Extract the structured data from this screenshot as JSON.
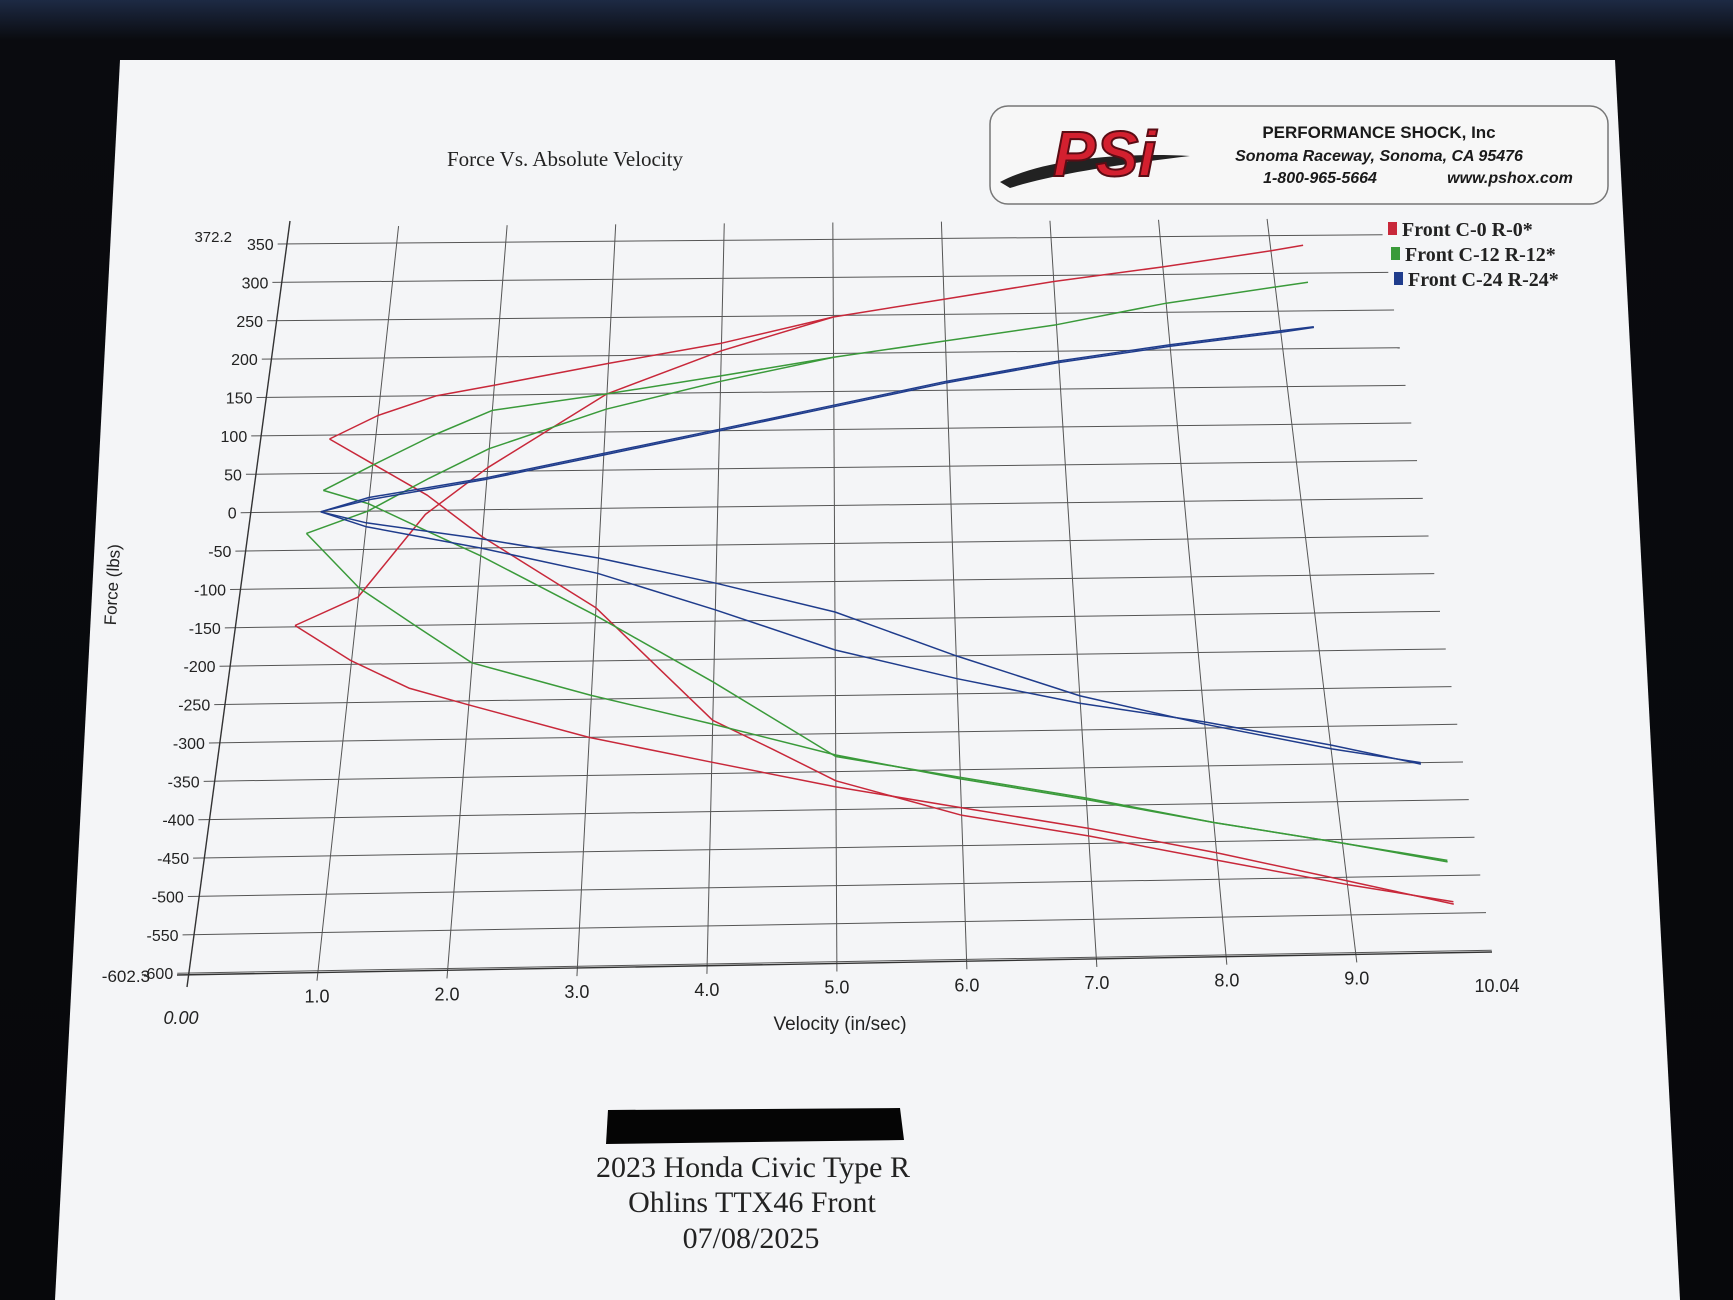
{
  "header": {
    "chart_title": "Force Vs. Absolute Velocity",
    "company_name": "PERFORMANCE SHOCK, Inc",
    "company_location": "Sonoma Raceway, Sonoma, CA 95476",
    "company_phone": "1-800-965-5664",
    "company_web": "www.pshox.com",
    "logo_text": "PSi"
  },
  "footer": {
    "vehicle": "2023 Honda Civic Type R",
    "shock": "Ohlins TTX46 Front",
    "date": "07/08/2025"
  },
  "colors": {
    "red": "#c8283a",
    "green": "#3a9a3a",
    "blue": "#1f3c8c",
    "grid": "#555555",
    "logo_red": "#d3202f"
  },
  "chart_data": {
    "type": "line",
    "title": "Force Vs. Absolute Velocity",
    "xlabel": "Velocity (in/sec)",
    "ylabel": "Force (lbs)",
    "xlim": [
      0.0,
      10.04
    ],
    "ylim": [
      -602.3,
      372.2
    ],
    "x_ticks": [
      1.0,
      2.0,
      3.0,
      4.0,
      5.0,
      6.0,
      7.0,
      8.0,
      9.0
    ],
    "x_tick_labels": [
      "1.0",
      "2.0",
      "3.0",
      "4.0",
      "5.0",
      "6.0",
      "7.0",
      "8.0",
      "9.0"
    ],
    "x_min_label": "0.00",
    "x_max_label": "10.04",
    "y_ticks": [
      350,
      300,
      250,
      200,
      150,
      100,
      50,
      0,
      -50,
      -100,
      -150,
      -200,
      -250,
      -300,
      -350,
      -400,
      -450,
      -500,
      -550,
      -600
    ],
    "y_tick_labels": [
      "350",
      "300",
      "250",
      "200",
      "150",
      "100",
      "50",
      "0",
      "-50",
      "-100",
      "-150",
      "-200",
      "-250",
      "-300",
      "-350",
      "-400",
      "-450",
      "-500",
      "-550",
      "-600"
    ],
    "y_max_label": "372.2",
    "y_min_label": "-602.3",
    "grid": true,
    "legend_position": "top-right",
    "series": [
      {
        "name": "Front C-0 R-0*",
        "color": "#c8283a",
        "curves": [
          [
            [
              0.6,
              95
            ],
            [
              1,
              125
            ],
            [
              1.5,
              150
            ],
            [
              2,
              163
            ],
            [
              3,
              190
            ],
            [
              4,
              215
            ],
            [
              5,
              248
            ],
            [
              6,
              270
            ],
            [
              7,
              292
            ],
            [
              8,
              310
            ],
            [
              9,
              330
            ],
            [
              9.3,
              337
            ]
          ],
          [
            [
              0.6,
              95
            ],
            [
              1,
              62
            ],
            [
              1.5,
              20
            ],
            [
              2,
              -35
            ],
            [
              3,
              -130
            ],
            [
              4,
              -280
            ],
            [
              4.5,
              -320
            ],
            [
              5,
              -362
            ],
            [
              6,
              -410
            ],
            [
              7,
              -440
            ],
            [
              8,
              -475
            ],
            [
              9,
              -510
            ],
            [
              9.8,
              -535
            ]
          ],
          [
            [
              0.5,
              -148
            ],
            [
              1,
              -112
            ],
            [
              1.5,
              -5
            ],
            [
              2,
              55
            ],
            [
              3,
              150
            ],
            [
              4,
              205
            ],
            [
              5,
              248
            ]
          ],
          [
            [
              0.5,
              -148
            ],
            [
              1,
              -195
            ],
            [
              1.5,
              -232
            ],
            [
              2,
              -255
            ],
            [
              3,
              -300
            ],
            [
              4,
              -335
            ],
            [
              5,
              -370
            ],
            [
              6,
              -400
            ],
            [
              7,
              -430
            ],
            [
              8,
              -465
            ],
            [
              9,
              -505
            ],
            [
              9.8,
              -538
            ]
          ]
        ]
      },
      {
        "name": "Front C-12 R-12*",
        "color": "#3a9a3a",
        "curves": [
          [
            [
              0.6,
              28
            ],
            [
              1,
              60
            ],
            [
              1.5,
              98
            ],
            [
              2,
              130
            ],
            [
              3,
              150
            ],
            [
              4,
              172
            ],
            [
              5,
              195
            ],
            [
              6,
              215
            ],
            [
              7,
              235
            ],
            [
              8,
              262
            ],
            [
              9,
              282
            ],
            [
              9.3,
              288
            ]
          ],
          [
            [
              0.6,
              28
            ],
            [
              1,
              10
            ],
            [
              1.5,
              -25
            ],
            [
              2,
              -60
            ],
            [
              3,
              -140
            ],
            [
              4,
              -230
            ],
            [
              5,
              -330
            ],
            [
              6,
              -360
            ],
            [
              7,
              -390
            ],
            [
              8,
              -425
            ],
            [
              9,
              -455
            ],
            [
              9.8,
              -480
            ]
          ],
          [
            [
              0.5,
              -28
            ],
            [
              1,
              0
            ],
            [
              1.5,
              42
            ],
            [
              2,
              80
            ],
            [
              3,
              130
            ],
            [
              4,
              165
            ],
            [
              5,
              195
            ]
          ],
          [
            [
              0.5,
              -28
            ],
            [
              1,
              -100
            ],
            [
              1.5,
              -150
            ],
            [
              2,
              -200
            ],
            [
              3,
              -245
            ],
            [
              4,
              -285
            ],
            [
              5,
              -328
            ],
            [
              6,
              -362
            ],
            [
              7,
              -392
            ],
            [
              8,
              -425
            ],
            [
              9,
              -455
            ],
            [
              9.8,
              -482
            ]
          ]
        ]
      },
      {
        "name": "Front C-24 R-24*",
        "color": "#1f3c8c",
        "curves": [
          [
            [
              0.6,
              0
            ],
            [
              1,
              15
            ],
            [
              2,
              40
            ],
            [
              3,
              70
            ],
            [
              4,
              100
            ],
            [
              5,
              130
            ],
            [
              6,
              160
            ],
            [
              7,
              185
            ],
            [
              8,
              205
            ],
            [
              9,
              222
            ],
            [
              9.3,
              228
            ]
          ],
          [
            [
              0.6,
              0
            ],
            [
              1,
              18
            ],
            [
              2,
              42
            ],
            [
              3,
              72
            ],
            [
              4,
              102
            ],
            [
              5,
              132
            ],
            [
              6,
              162
            ],
            [
              7,
              187
            ],
            [
              8,
              207
            ],
            [
              9,
              224
            ],
            [
              9.3,
              229
            ]
          ],
          [
            [
              0.6,
              0
            ],
            [
              1,
              -15
            ],
            [
              2,
              -38
            ],
            [
              3,
              -65
            ],
            [
              4,
              -100
            ],
            [
              5,
              -140
            ],
            [
              6,
              -200
            ],
            [
              7,
              -255
            ],
            [
              8,
              -295
            ],
            [
              9,
              -330
            ],
            [
              9.7,
              -350
            ]
          ],
          [
            [
              0.6,
              0
            ],
            [
              1,
              -20
            ],
            [
              2,
              -50
            ],
            [
              3,
              -85
            ],
            [
              4,
              -135
            ],
            [
              5,
              -190
            ],
            [
              6,
              -230
            ],
            [
              7,
              -265
            ],
            [
              8,
              -292
            ],
            [
              9,
              -325
            ],
            [
              9.7,
              -352
            ]
          ]
        ]
      }
    ]
  }
}
